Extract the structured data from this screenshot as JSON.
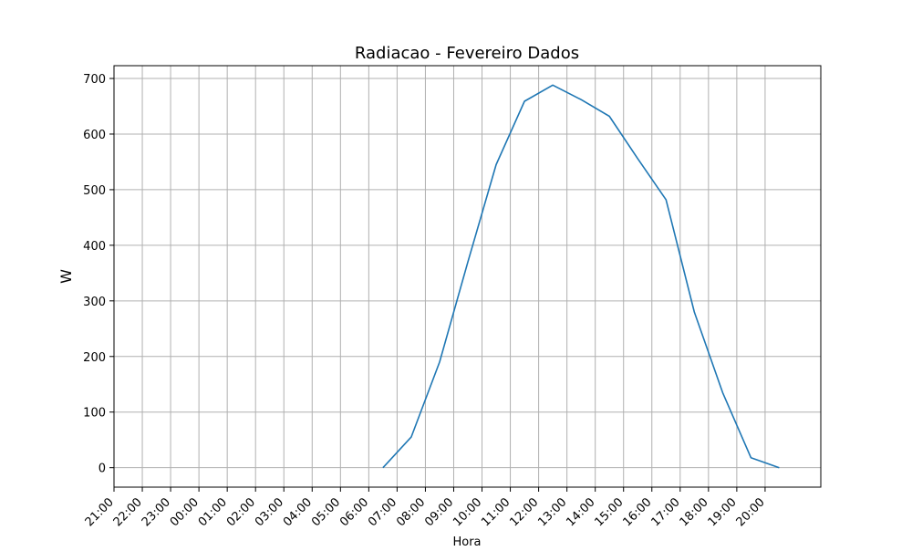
{
  "chart_data": {
    "type": "line",
    "title": "Radiacao - Fevereiro Dados",
    "xlabel": "Hora",
    "ylabel": "W",
    "x_ticks": [
      "21:00",
      "22:00",
      "23:00",
      "00:00",
      "01:00",
      "02:00",
      "03:00",
      "04:00",
      "05:00",
      "06:00",
      "07:00",
      "08:00",
      "09:00",
      "10:00",
      "11:00",
      "12:00",
      "13:00",
      "14:00",
      "15:00",
      "16:00",
      "17:00",
      "18:00",
      "19:00",
      "20:00"
    ],
    "y_ticks": [
      0,
      100,
      200,
      300,
      400,
      500,
      600,
      700
    ],
    "ylim": [
      -35,
      723
    ],
    "grid": true,
    "series": [
      {
        "color": "#1f77b4",
        "x": [
          "06:30",
          "07:30",
          "08:30",
          "09:30",
          "10:30",
          "11:30",
          "12:30",
          "13:30",
          "14:30",
          "15:30",
          "16:30",
          "17:30",
          "18:30",
          "19:30",
          "20:30"
        ],
        "values": [
          0,
          55,
          190,
          370,
          545,
          659,
          688,
          662,
          632,
          556,
          482,
          280,
          135,
          18,
          0
        ]
      }
    ]
  }
}
